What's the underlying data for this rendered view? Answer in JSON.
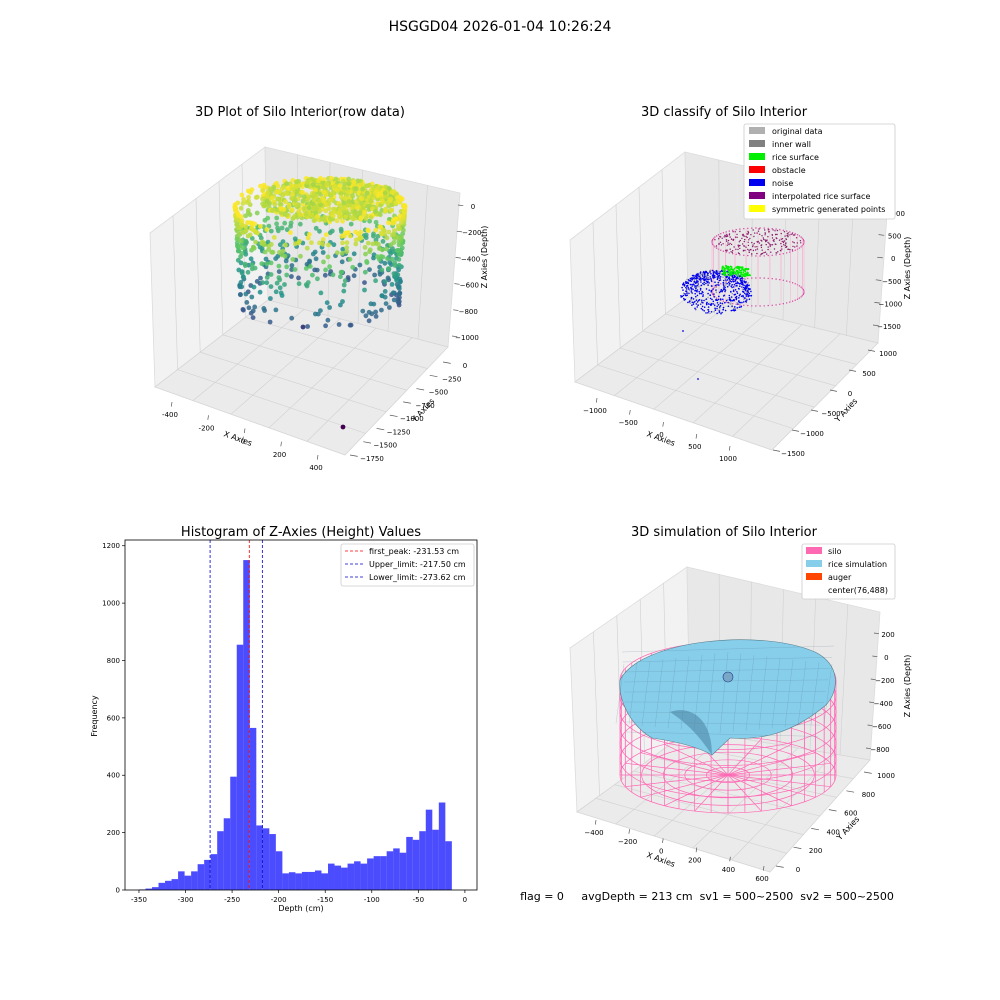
{
  "figure": {
    "title": "HSGGD04 2026-01-04 10:26:24",
    "status_line": "flag = 0     avgDepth = 213 cm  sv1 = 500~2500  sv2 = 500~2500"
  },
  "chart_data": [
    {
      "type": "scatter",
      "subtype": "3d",
      "title": "3D Plot of Silo Interior(row data)",
      "xlabel": "X Axies",
      "ylabel": "Y Axies",
      "zlabel": "Z Axies (Depth)",
      "x_ticks": [
        "-400",
        "-200",
        "0",
        "200",
        "400"
      ],
      "y_ticks": [
        "0",
        "−250",
        "−500",
        "−750",
        "−1000",
        "−1250",
        "−1500",
        "−1750"
      ],
      "z_ticks": [
        "0",
        "−200",
        "−400",
        "−600",
        "−800",
        "−1000"
      ],
      "colormap": "viridis",
      "grid": true
    },
    {
      "type": "scatter",
      "subtype": "3d",
      "title": "3D classify of Silo Interior",
      "xlabel": "X Axies",
      "ylabel": "Y Axies",
      "zlabel": "Z Axies (Depth)",
      "x_ticks": [
        "−1000",
        "−500",
        "0",
        "500",
        "1000"
      ],
      "y_ticks": [
        "1000",
        "500",
        "0",
        "−500",
        "−1000",
        "−1500"
      ],
      "z_ticks": [
        "1000",
        "500",
        "0",
        "−500",
        "−1000",
        "−1500"
      ],
      "legend_position": "top-right",
      "legend": [
        {
          "name": "original data",
          "color": "#b0b0b0"
        },
        {
          "name": "inner wall",
          "color": "#808080"
        },
        {
          "name": "rice surface",
          "color": "#00ee00"
        },
        {
          "name": "obstacle",
          "color": "#ff0000"
        },
        {
          "name": "noise",
          "color": "#0000ee"
        },
        {
          "name": "interpolated rice surface",
          "color": "#800080"
        },
        {
          "name": "symmetric generated points",
          "color": "#ffff00"
        }
      ],
      "grid": true
    },
    {
      "type": "bar",
      "subtype": "histogram",
      "title": "Histogram of Z-Axies (Height) Values",
      "xlabel": "Depth (cm)",
      "ylabel": "Frequency",
      "xlim": [
        -365,
        13
      ],
      "ylim": [
        0,
        1220
      ],
      "x_ticks": [
        -350,
        -300,
        -250,
        -200,
        -150,
        -100,
        -50,
        0
      ],
      "y_ticks": [
        0,
        200,
        400,
        600,
        800,
        1000,
        1200
      ],
      "bar_color": "#0000ff",
      "bins": [
        {
          "x0": -350,
          "x1": -343,
          "value": 2
        },
        {
          "x0": -343,
          "x1": -336,
          "value": 5
        },
        {
          "x0": -336,
          "x1": -329,
          "value": 10
        },
        {
          "x0": -329,
          "x1": -322,
          "value": 25
        },
        {
          "x0": -322,
          "x1": -315,
          "value": 32
        },
        {
          "x0": -315,
          "x1": -308,
          "value": 38
        },
        {
          "x0": -308,
          "x1": -301,
          "value": 65
        },
        {
          "x0": -301,
          "x1": -294,
          "value": 50
        },
        {
          "x0": -294,
          "x1": -287,
          "value": 65
        },
        {
          "x0": -287,
          "x1": -280,
          "value": 90
        },
        {
          "x0": -280,
          "x1": -273,
          "value": 105
        },
        {
          "x0": -273,
          "x1": -266,
          "value": 125
        },
        {
          "x0": -266,
          "x1": -259,
          "value": 205
        },
        {
          "x0": -259,
          "x1": -252,
          "value": 250
        },
        {
          "x0": -252,
          "x1": -245,
          "value": 395
        },
        {
          "x0": -245,
          "x1": -238,
          "value": 855
        },
        {
          "x0": -238,
          "x1": -231,
          "value": 1150
        },
        {
          "x0": -231,
          "x1": -224,
          "value": 565
        },
        {
          "x0": -224,
          "x1": -217,
          "value": 225
        },
        {
          "x0": -217,
          "x1": -210,
          "value": 215
        },
        {
          "x0": -210,
          "x1": -203,
          "value": 195
        },
        {
          "x0": -203,
          "x1": -196,
          "value": 135
        },
        {
          "x0": -196,
          "x1": -189,
          "value": 58
        },
        {
          "x0": -189,
          "x1": -182,
          "value": 62
        },
        {
          "x0": -182,
          "x1": -175,
          "value": 58
        },
        {
          "x0": -175,
          "x1": -168,
          "value": 63
        },
        {
          "x0": -168,
          "x1": -161,
          "value": 63
        },
        {
          "x0": -161,
          "x1": -154,
          "value": 68
        },
        {
          "x0": -154,
          "x1": -147,
          "value": 58
        },
        {
          "x0": -147,
          "x1": -140,
          "value": 92
        },
        {
          "x0": -140,
          "x1": -133,
          "value": 85
        },
        {
          "x0": -133,
          "x1": -126,
          "value": 78
        },
        {
          "x0": -126,
          "x1": -119,
          "value": 92
        },
        {
          "x0": -119,
          "x1": -112,
          "value": 100
        },
        {
          "x0": -112,
          "x1": -105,
          "value": 92
        },
        {
          "x0": -105,
          "x1": -98,
          "value": 110
        },
        {
          "x0": -98,
          "x1": -91,
          "value": 118
        },
        {
          "x0": -91,
          "x1": -84,
          "value": 118
        },
        {
          "x0": -84,
          "x1": -77,
          "value": 135
        },
        {
          "x0": -77,
          "x1": -70,
          "value": 145
        },
        {
          "x0": -70,
          "x1": -63,
          "value": 130
        },
        {
          "x0": -63,
          "x1": -56,
          "value": 185
        },
        {
          "x0": -56,
          "x1": -49,
          "value": 175
        },
        {
          "x0": -49,
          "x1": -42,
          "value": 205
        },
        {
          "x0": -42,
          "x1": -35,
          "value": 280
        },
        {
          "x0": -35,
          "x1": -28,
          "value": 210
        },
        {
          "x0": -28,
          "x1": -21,
          "value": 305
        },
        {
          "x0": -21,
          "x1": -14,
          "value": 170
        }
      ],
      "vlines": [
        {
          "name": "first_peak: -231.53 cm",
          "x": -231.53,
          "color": "#ff0000"
        },
        {
          "name": "Upper_limit: -217.50 cm",
          "x": -217.5,
          "color": "#0000cc"
        },
        {
          "name": "Lower_limit: -273.62 cm",
          "x": -273.62,
          "color": "#0000cc"
        }
      ],
      "legend_position": "top-right"
    },
    {
      "type": "area",
      "subtype": "3d-surface",
      "title": "3D simulation of Silo Interior",
      "xlabel": "X Axies",
      "ylabel": "Y Axies",
      "zlabel": "Z Axies (Depth)",
      "x_ticks": [
        "−400",
        "−200",
        "0",
        "200",
        "400",
        "600"
      ],
      "y_ticks": [
        "1000",
        "800",
        "600",
        "400",
        "200",
        "0"
      ],
      "z_ticks": [
        "200",
        "0",
        "−200",
        "−400",
        "−600",
        "−800"
      ],
      "legend_position": "top-right",
      "legend": [
        {
          "name": "silo",
          "color": "#ff69b4"
        },
        {
          "name": "rice simulation",
          "color": "#87ceeb"
        },
        {
          "name": "auger",
          "color": "#ff4500"
        },
        {
          "name": "center(76,488)",
          "color": ""
        }
      ],
      "grid": true
    }
  ]
}
